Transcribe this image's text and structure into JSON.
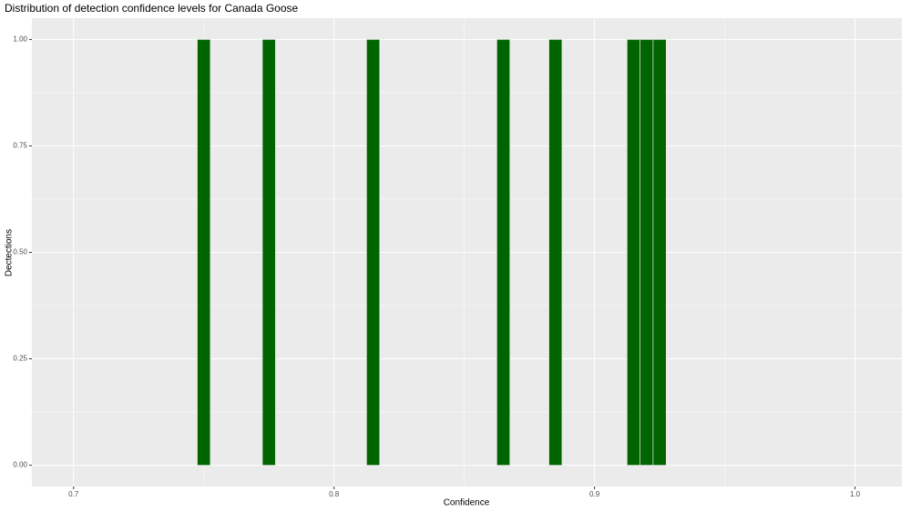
{
  "chart_data": {
    "type": "histogram",
    "title": "Distribution of detection confidence levels for Canada Goose",
    "x_label": "Confidence",
    "y_label": "Dectections",
    "bins": [
      0.7475,
      0.7525,
      0.7575,
      0.7625,
      0.7675,
      0.7725,
      0.7775,
      0.7825,
      0.7875,
      0.7925,
      0.7975,
      0.8025,
      0.8075,
      0.8125,
      0.8175,
      0.8225,
      0.8275,
      0.8325,
      0.8375,
      0.8425,
      0.8475,
      0.8525,
      0.8575,
      0.8625,
      0.8675,
      0.8725,
      0.8775,
      0.8825,
      0.8875,
      0.8925,
      0.8975,
      0.9025,
      0.9075,
      0.9125,
      0.9175,
      0.9225,
      0.9275
    ],
    "values": [
      1,
      0,
      0,
      0,
      0,
      1,
      0,
      0,
      0,
      0,
      0,
      0,
      0,
      1,
      0,
      0,
      0,
      0,
      0,
      0,
      0,
      0,
      0,
      1,
      0,
      0,
      0,
      1,
      0,
      0,
      0,
      0,
      0,
      1,
      1,
      1
    ],
    "color": "#006400",
    "xlim": [
      0.684,
      1.018
    ],
    "xticks": [
      0.7,
      0.8,
      0.9,
      {
        "value": 1,
        "label": "1.0"
      }
    ],
    "ylim": [
      -0.05,
      1.05
    ],
    "yticks": [
      {
        "value": 0,
        "label": "0.00"
      },
      {
        "value": 0.25,
        "label": "0.25"
      },
      {
        "value": 0.5,
        "label": "0.50"
      },
      {
        "value": 0.75,
        "label": "0.75"
      },
      {
        "value": 1,
        "label": "1.00"
      }
    ],
    "grid": true
  }
}
